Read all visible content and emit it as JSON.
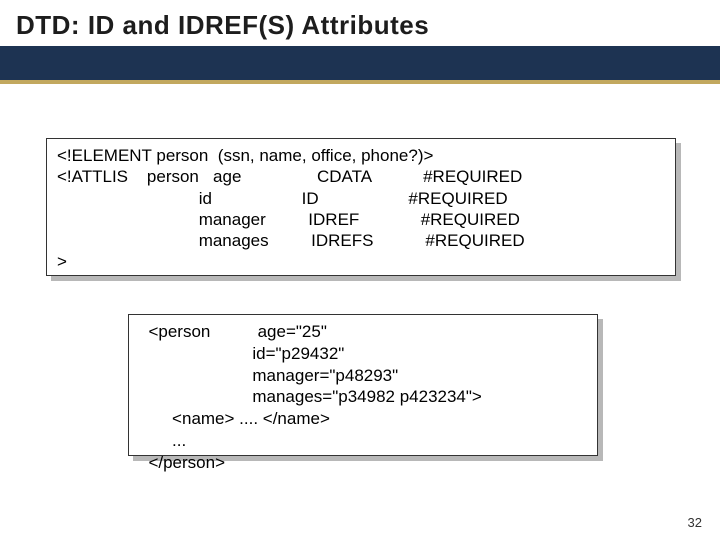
{
  "slide": {
    "title": "DTD: ID and IDREF(S) Attributes",
    "page_number": "32",
    "colors": {
      "header_band": "#1d3352",
      "header_line": "#c2a85f",
      "box_shadow": "#b8b8b8",
      "text": "#000000",
      "background": "#ffffff"
    },
    "font_sizes": {
      "title": 26,
      "code": 17,
      "page_num": 13
    }
  },
  "code_block_1": {
    "line1": "<!ELEMENT person  (ssn, name, office, phone?)>",
    "line2": "<!ATTLIS    person   age                CDATA           #REQUIRED",
    "line3": "                              id                   ID                   #REQUIRED",
    "line4": "                              manager         IDREF             #REQUIRED",
    "line5": "                              manages         IDREFS           #REQUIRED",
    "line6": ">"
  },
  "code_block_2": {
    "line1": "  <person          age=\"25\"",
    "line2": "                        id=\"p29432\"",
    "line3": "                        manager=\"p48293\"",
    "line4": "                        manages=\"p34982 p423234\">",
    "line5": "       <name> .... </name>",
    "line6": "       ...",
    "line7": "  </person>"
  }
}
